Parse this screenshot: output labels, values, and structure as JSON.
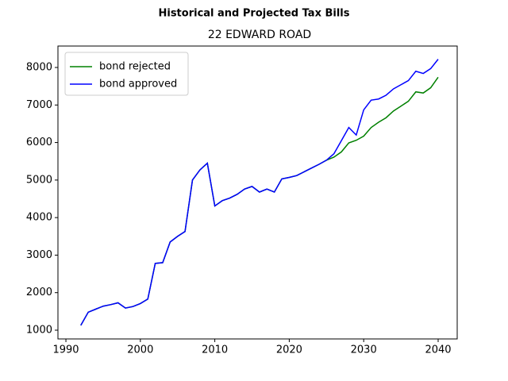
{
  "chart_data": {
    "type": "line",
    "title": "Historical and Projected Tax Bills",
    "subtitle": "22 EDWARD ROAD",
    "x": [
      1992,
      1993,
      1994,
      1995,
      1996,
      1997,
      1998,
      1999,
      2000,
      2001,
      2002,
      2003,
      2004,
      2005,
      2006,
      2007,
      2008,
      2009,
      2010,
      2011,
      2012,
      2013,
      2014,
      2015,
      2016,
      2017,
      2018,
      2019,
      2020,
      2021,
      2022,
      2023,
      2024,
      2025,
      2026,
      2027,
      2028,
      2029,
      2030,
      2031,
      2032,
      2033,
      2034,
      2035,
      2036,
      2037,
      2038,
      2039,
      2040
    ],
    "series": [
      {
        "name": "bond rejected",
        "color": "#008000",
        "values": [
          1130,
          1480,
          1560,
          1640,
          1680,
          1730,
          1590,
          1630,
          1710,
          1830,
          2780,
          2800,
          3350,
          3500,
          3630,
          5000,
          5270,
          5450,
          4310,
          4450,
          4520,
          4620,
          4760,
          4830,
          4680,
          4760,
          4680,
          5030,
          5070,
          5120,
          5220,
          5320,
          5420,
          5530,
          5610,
          5750,
          5990,
          6060,
          6170,
          6400,
          6540,
          6660,
          6840,
          6970,
          7100,
          7350,
          7320,
          7460,
          7740
        ]
      },
      {
        "name": "bond approved",
        "color": "#0000ff",
        "values": [
          1130,
          1480,
          1560,
          1640,
          1680,
          1730,
          1590,
          1630,
          1710,
          1830,
          2780,
          2800,
          3350,
          3500,
          3630,
          5000,
          5270,
          5450,
          4310,
          4450,
          4520,
          4620,
          4760,
          4830,
          4680,
          4760,
          4680,
          5030,
          5070,
          5120,
          5220,
          5320,
          5420,
          5530,
          5700,
          6050,
          6400,
          6200,
          6870,
          7130,
          7160,
          7260,
          7430,
          7540,
          7650,
          7900,
          7840,
          7970,
          8220
        ]
      }
    ],
    "xlim": [
      1988.93,
      2042.56
    ],
    "xticks": [
      1990,
      2000,
      2010,
      2020,
      2030,
      2040
    ],
    "ylim": [
      767,
      8571
    ],
    "yticks": [
      1000,
      2000,
      3000,
      4000,
      5000,
      6000,
      7000,
      8000
    ],
    "legend": "upper left",
    "grid": false
  }
}
